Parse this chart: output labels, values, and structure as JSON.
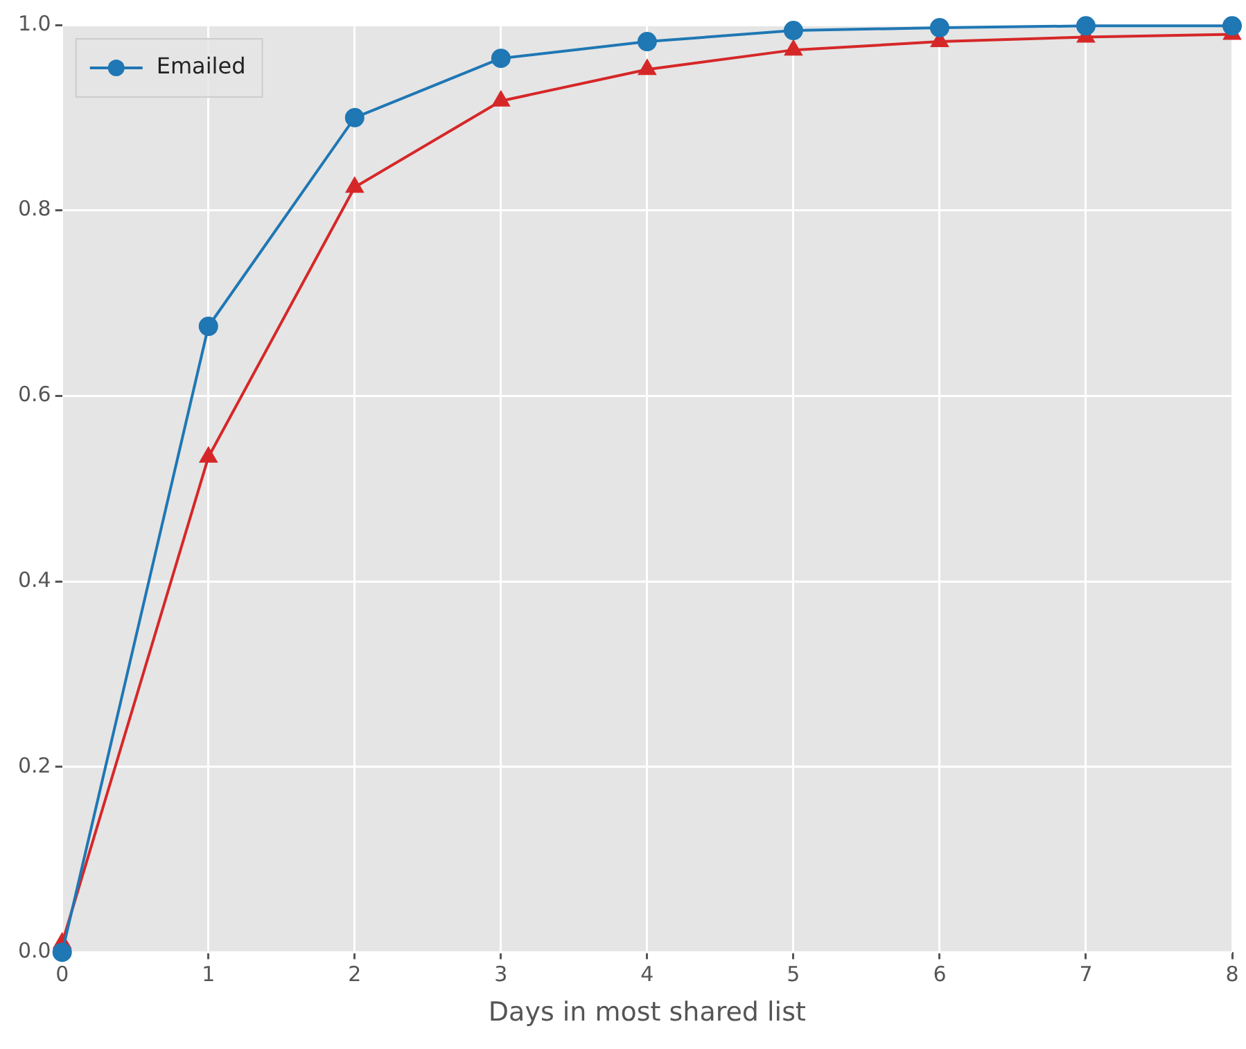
{
  "chart_data": {
    "type": "line",
    "xlabel": "Days in most shared list",
    "x": [
      0,
      1,
      2,
      3,
      4,
      5,
      6,
      7,
      8
    ],
    "series": [
      {
        "name": "Emailed",
        "color": "#1f77b4",
        "marker": "circle",
        "values": [
          0,
          0.675,
          0.9,
          0.964,
          0.982,
          0.994,
          0.997,
          0.999,
          0.999
        ]
      },
      {
        "color": "#d62728",
        "marker": "triangle",
        "values": [
          0.01,
          0.534,
          0.825,
          0.918,
          0.952,
          0.973,
          0.982,
          0.987,
          0.99
        ]
      }
    ],
    "xlim": [
      0,
      8
    ],
    "xticks": [
      0,
      1,
      2,
      3,
      4,
      5,
      6,
      7,
      8
    ],
    "ylim": [
      0,
      1
    ],
    "yticks": [
      {
        "value": 0,
        "label": "0.0"
      },
      0.2,
      0.4,
      0.6,
      0.8,
      {
        "value": 1,
        "label": "1.0"
      }
    ],
    "grid": true,
    "legend": "top left",
    "line_style": "solid"
  }
}
